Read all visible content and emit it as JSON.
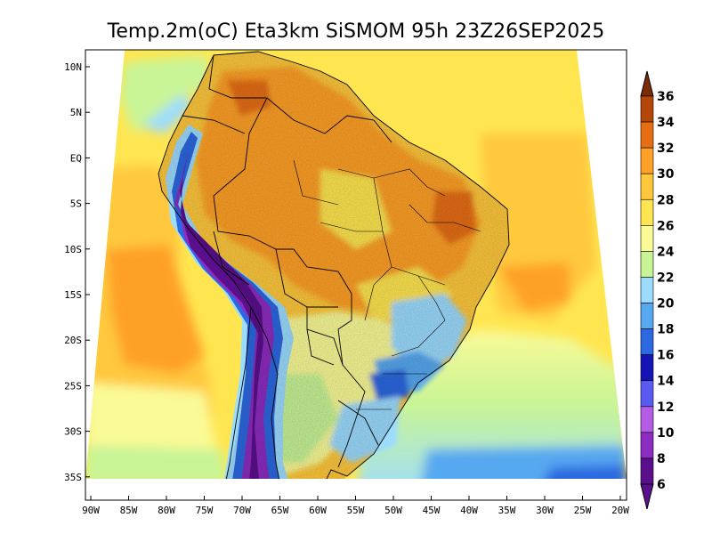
{
  "title": "Temp.2m(oC) Eta3km SiSMOM 95h 23Z26SEP2025",
  "lat_labels": [
    "10N",
    "5N",
    "EQ",
    "5S",
    "10S",
    "15S",
    "20S",
    "25S",
    "30S",
    "35S"
  ],
  "lon_labels": [
    "90W",
    "85W",
    "80W",
    "75W",
    "70W",
    "65W",
    "60W",
    "55W",
    "50W",
    "45W",
    "40W",
    "35W",
    "30W",
    "25W",
    "20W"
  ],
  "colorbar": {
    "labels": [
      "6",
      "8",
      "10",
      "12",
      "14",
      "16",
      "18",
      "20",
      "22",
      "24",
      "26",
      "28",
      "30",
      "32",
      "34",
      "36"
    ],
    "colors": [
      "#5a0f8c",
      "#8c2cc0",
      "#b45ce6",
      "#5a5af0",
      "#1414b4",
      "#2c68e0",
      "#56a8f0",
      "#9cdcff",
      "#c8f496",
      "#fafa96",
      "#ffe650",
      "#ffc83c",
      "#ffa028",
      "#e66e14",
      "#b4460a",
      "#7a2c06"
    ]
  }
}
